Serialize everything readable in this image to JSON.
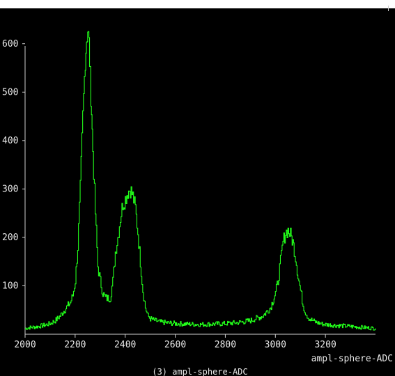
{
  "chart_data": {
    "type": "line",
    "title": "(3) ampl-sphere-ADC",
    "xlabel": "ampl-sphere-ADC",
    "ylabel": "",
    "xlim": [
      2000,
      3400
    ],
    "ylim": [
      0,
      650
    ],
    "x_ticks": [
      2000,
      2200,
      2400,
      2600,
      2800,
      3000,
      3200
    ],
    "y_ticks": [
      100,
      200,
      300,
      400,
      500,
      600
    ],
    "grid": false,
    "line_color": "#22ff1a",
    "background_color": "#000000",
    "series": [
      {
        "x": [
          2000,
          2020,
          2040,
          2060,
          2080,
          2100,
          2120,
          2140,
          2160,
          2180,
          2190,
          2200,
          2210,
          2220,
          2230,
          2240,
          2245,
          2250,
          2255,
          2260,
          2265,
          2270,
          2280,
          2290,
          2300,
          2310,
          2320,
          2330,
          2340,
          2350,
          2360,
          2370,
          2380,
          2390,
          2400,
          2410,
          2420,
          2430,
          2440,
          2450,
          2460,
          2470,
          2480,
          2490,
          2500,
          2520,
          2540,
          2560,
          2580,
          2600,
          2650,
          2700,
          2750,
          2800,
          2850,
          2900,
          2950,
          2980,
          3000,
          3010,
          3020,
          3030,
          3040,
          3050,
          3060,
          3070,
          3075,
          3080,
          3090,
          3100,
          3110,
          3120,
          3130,
          3140,
          3150,
          3160,
          3180,
          3200,
          3250,
          3300,
          3350,
          3400
        ],
        "y": [
          12,
          14,
          15,
          17,
          19,
          22,
          28,
          38,
          52,
          65,
          80,
          110,
          180,
          300,
          450,
          570,
          610,
          630,
          600,
          530,
          460,
          380,
          250,
          140,
          110,
          85,
          75,
          74,
          76,
          110,
          170,
          200,
          240,
          270,
          280,
          295,
          300,
          285,
          260,
          210,
          150,
          90,
          55,
          38,
          32,
          28,
          25,
          24,
          23,
          22,
          21,
          20,
          21,
          22,
          24,
          28,
          38,
          55,
          85,
          110,
          150,
          190,
          210,
          215,
          205,
          190,
          175,
          160,
          120,
          90,
          60,
          45,
          35,
          30,
          28,
          25,
          22,
          20,
          18,
          16,
          14,
          12
        ]
      }
    ]
  }
}
